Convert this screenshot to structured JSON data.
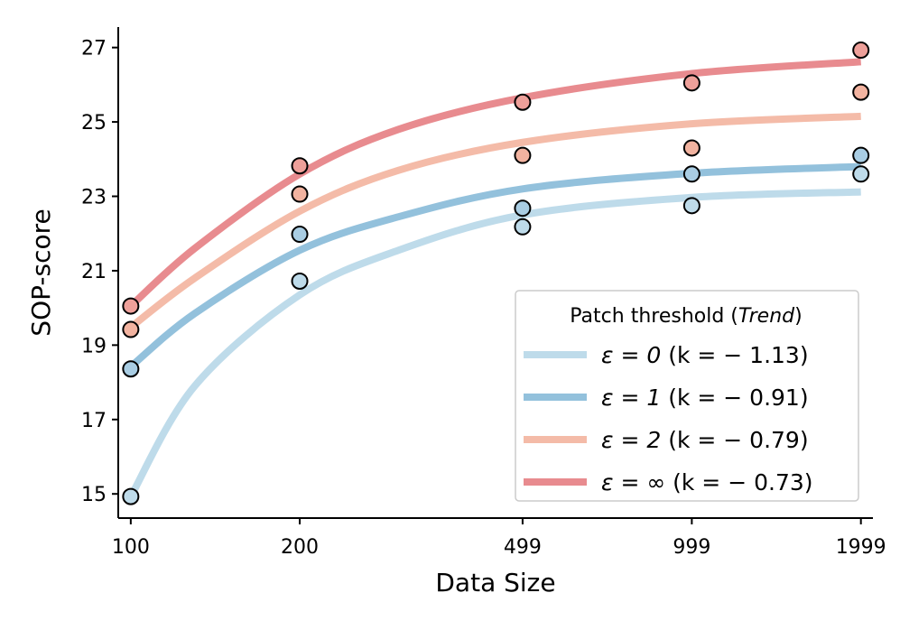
{
  "chart_data": {
    "type": "scatter",
    "xlabel": "Data Size",
    "ylabel": "SOP-score",
    "x": [
      100,
      200,
      499,
      999,
      1999
    ],
    "x_tick_labels": [
      "100",
      "200",
      "499",
      "999",
      "1999"
    ],
    "x_scale": "log",
    "xlim": [
      95,
      2100
    ],
    "y_ticks": [
      15,
      17,
      19,
      21,
      23,
      25,
      27
    ],
    "y_tick_labels": [
      "15",
      "17",
      "19",
      "21",
      "23",
      "25",
      "27"
    ],
    "ylim": [
      14.35,
      27.55
    ],
    "grid": false,
    "legend": {
      "title_prefix": "Patch threshold (",
      "title_emph": "Trend",
      "title_suffix": ")",
      "placement": "lower-right"
    },
    "series": [
      {
        "label_eps": "ε = 0",
        "label_k": "(k = − 1.13)",
        "line_color": "#bedbea",
        "marker_color": "#bedbea",
        "points": [
          14.93,
          20.72,
          22.18,
          22.75,
          23.6
        ],
        "trend": [
          [
            100,
            14.93
          ],
          [
            130,
            17.9
          ],
          [
            200,
            20.35
          ],
          [
            300,
            21.55
          ],
          [
            499,
            22.5
          ],
          [
            999,
            22.97
          ],
          [
            1999,
            23.12
          ]
        ]
      },
      {
        "label_eps": "ε = 1",
        "label_k": "(k = − 0.91)",
        "line_color": "#93c1dc",
        "marker_color": "#a9cde3",
        "points": [
          18.36,
          21.98,
          22.68,
          23.6,
          24.1
        ],
        "trend": [
          [
            100,
            18.42
          ],
          [
            130,
            19.85
          ],
          [
            200,
            21.55
          ],
          [
            300,
            22.45
          ],
          [
            499,
            23.2
          ],
          [
            999,
            23.62
          ],
          [
            1999,
            23.8
          ]
        ]
      },
      {
        "label_eps": "ε = 2",
        "label_k": "(k = − 0.79)",
        "line_color": "#f4bba8",
        "marker_color": "#f2b3a0",
        "points": [
          19.42,
          23.06,
          24.1,
          24.3,
          25.8
        ],
        "trend": [
          [
            100,
            19.48
          ],
          [
            130,
            20.8
          ],
          [
            200,
            22.6
          ],
          [
            300,
            23.7
          ],
          [
            499,
            24.45
          ],
          [
            999,
            24.95
          ],
          [
            1999,
            25.15
          ]
        ]
      },
      {
        "label_eps": "ε = ∞",
        "label_k": "(k = − 0.73)",
        "line_color": "#e88b8f",
        "marker_color": "#eea09a",
        "points": [
          20.05,
          23.82,
          25.53,
          26.05,
          26.93
        ],
        "trend": [
          [
            100,
            20.05
          ],
          [
            130,
            21.6
          ],
          [
            200,
            23.6
          ],
          [
            300,
            24.8
          ],
          [
            499,
            25.65
          ],
          [
            999,
            26.3
          ],
          [
            1999,
            26.62
          ]
        ]
      }
    ]
  }
}
